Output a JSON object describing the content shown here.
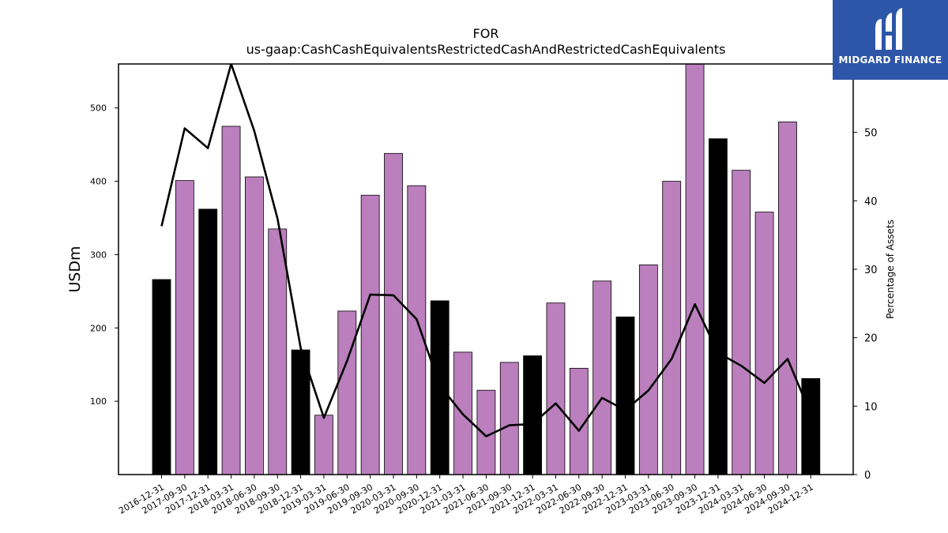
{
  "chart_data": {
    "type": "bar",
    "title_line1": "FOR",
    "title_line2": "us-gaap:CashCashEquivalentsRestrictedCashAndRestrictedCashEquivalents",
    "ylabel": "USDm",
    "ylabel_right": "Percentage of Assets",
    "categories": [
      "2016-12-31",
      "2017-09-30",
      "2017-12-31",
      "2018-03-31",
      "2018-06-30",
      "2018-09-30",
      "2018-12-31",
      "2019-03-31",
      "2019-06-30",
      "2019-09-30",
      "2020-03-31",
      "2020-09-30",
      "2020-12-31",
      "2021-03-31",
      "2021-06-30",
      "2021-09-30",
      "2021-12-31",
      "2022-03-31",
      "2022-06-30",
      "2022-09-30",
      "2022-12-31",
      "2023-03-31",
      "2023-06-30",
      "2023-09-30",
      "2023-12-31",
      "2024-03-31",
      "2024-06-30",
      "2024-09-30",
      "2024-12-31"
    ],
    "series": [
      {
        "values": [
          266,
          401,
          362,
          475,
          406,
          335,
          170,
          81,
          223,
          381,
          438,
          394,
          237,
          167,
          115,
          153,
          162,
          234,
          145,
          264,
          215,
          286,
          400,
          560,
          458,
          415,
          358,
          481,
          131
        ],
        "colors": [
          "#000000",
          "#bb7fbd",
          "#000000",
          "#bb7fbd",
          "#bb7fbd",
          "#bb7fbd",
          "#000000",
          "#bb7fbd",
          "#bb7fbd",
          "#bb7fbd",
          "#bb7fbd",
          "#bb7fbd",
          "#000000",
          "#bb7fbd",
          "#bb7fbd",
          "#bb7fbd",
          "#000000",
          "#bb7fbd",
          "#bb7fbd",
          "#bb7fbd",
          "#000000",
          "#bb7fbd",
          "#bb7fbd",
          "#bb7fbd",
          "#000000",
          "#bb7fbd",
          "#bb7fbd",
          "#bb7fbd",
          "#000000"
        ]
      },
      {
        "axis": "right",
        "values": [
          36.3,
          50.6,
          47.7,
          60.0,
          50.2,
          37.4,
          18.5,
          8.3,
          16.6,
          26.3,
          26.2,
          22.7,
          13.0,
          8.8,
          5.6,
          7.2,
          7.4,
          10.4,
          6.4,
          11.2,
          9.4,
          12.3,
          16.9,
          24.9,
          17.8,
          15.9,
          13.4,
          16.9,
          8.8
        ],
        "color": "#000000"
      }
    ],
    "ylim": [
      0,
      560
    ],
    "ylim_right": [
      0,
      60
    ],
    "yticks": [
      100,
      200,
      300,
      400,
      500
    ],
    "yticks_right": [
      0,
      10,
      20,
      30,
      40,
      50
    ],
    "bar_colors": {
      "year_end": "#000000",
      "quarter": "#bb7fbd"
    },
    "grid": false
  },
  "logo": {
    "text": "MIDGARD FINANCE",
    "bg_color": "#2d56a8",
    "fg_color": "#ffffff"
  }
}
